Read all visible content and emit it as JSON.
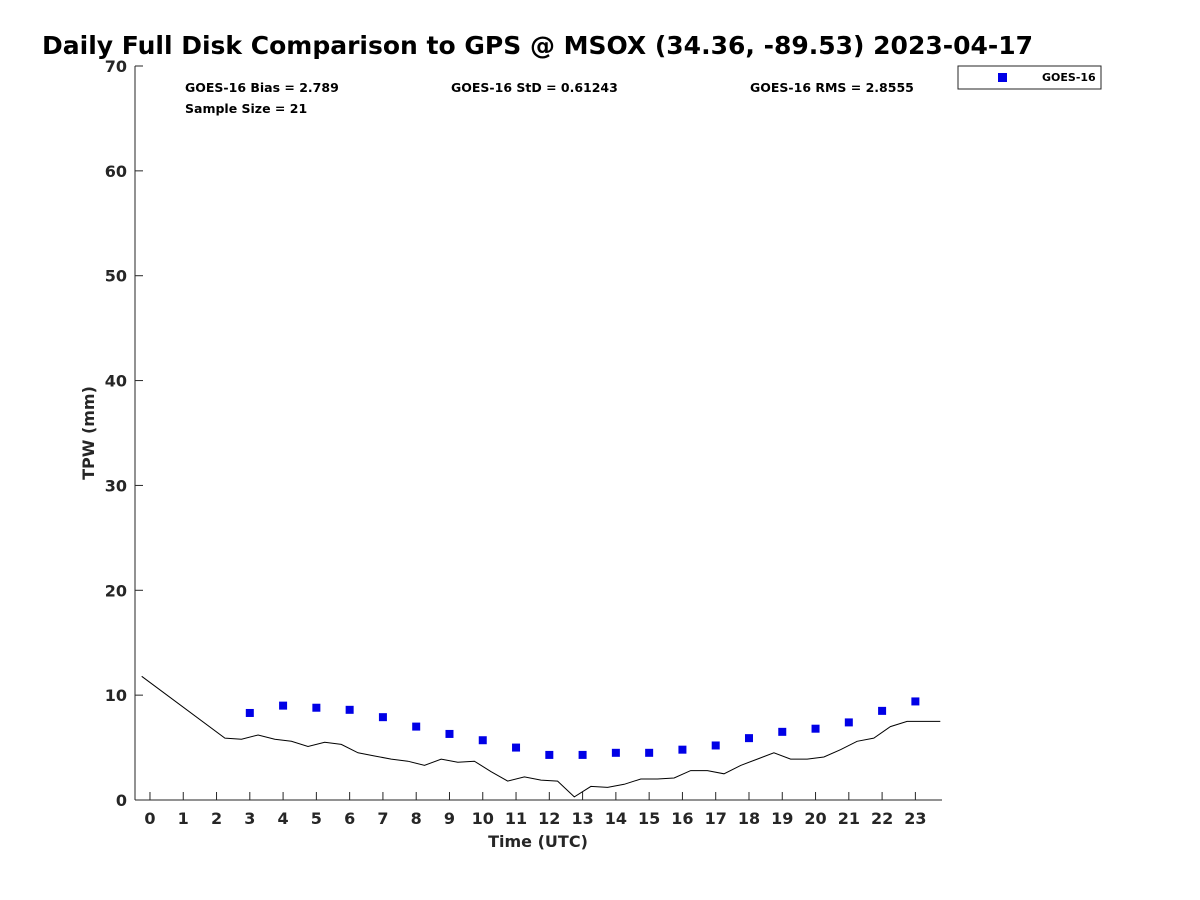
{
  "chart_data": {
    "type": "scatter",
    "title": "Daily Full Disk Comparison to GPS @ MSOX (34.36, -89.53) 2023-04-17",
    "xlabel": "Time (UTC)",
    "ylabel": "TPW (mm)",
    "xlim": [
      -0.45,
      23.8
    ],
    "ylim": [
      0,
      70
    ],
    "xticks": [
      0,
      1,
      2,
      3,
      4,
      5,
      6,
      7,
      8,
      9,
      10,
      11,
      12,
      13,
      14,
      15,
      16,
      17,
      18,
      19,
      20,
      21,
      22,
      23
    ],
    "yticks": [
      0,
      10,
      20,
      30,
      40,
      50,
      60,
      70
    ],
    "legend": {
      "position": "top-right",
      "entries": [
        "GOES-16"
      ]
    },
    "stats": {
      "bias": "GOES-16 Bias = 2.789",
      "std": "GOES-16 StD = 0.61243",
      "rms": "GOES-16 RMS = 2.8555",
      "sample": "Sample Size = 21"
    },
    "series": [
      {
        "name": "GOES-16",
        "kind": "scatter",
        "color": "#0000e6",
        "x": [
          3,
          4,
          5,
          6,
          7,
          8,
          9,
          10,
          11,
          12,
          13,
          14,
          15,
          16,
          17,
          18,
          19,
          20,
          21,
          22,
          23
        ],
        "y": [
          8.3,
          9.0,
          8.8,
          8.6,
          7.9,
          7.0,
          6.3,
          5.7,
          5.0,
          4.3,
          4.3,
          4.5,
          4.5,
          4.8,
          5.2,
          5.9,
          6.5,
          6.8,
          7.4,
          8.5,
          9.4
        ]
      },
      {
        "kind": "line",
        "color": "#000000",
        "x": [
          -0.25,
          2.25,
          2.75,
          3.25,
          3.75,
          4.25,
          4.75,
          5.25,
          5.75,
          6.25,
          6.75,
          7.25,
          7.75,
          8.25,
          8.75,
          9.25,
          9.75,
          10.25,
          10.75,
          11.25,
          11.75,
          12.25,
          12.75,
          13.25,
          13.75,
          14.25,
          14.75,
          15.25,
          15.75,
          16.25,
          16.75,
          17.25,
          17.75,
          18.25,
          18.75,
          19.25,
          19.75,
          20.25,
          20.75,
          21.25,
          21.75,
          22.25,
          22.75,
          23.25,
          23.75
        ],
        "y": [
          11.8,
          5.9,
          5.8,
          6.2,
          5.8,
          5.6,
          5.1,
          5.5,
          5.3,
          4.5,
          4.2,
          3.9,
          3.7,
          3.3,
          3.9,
          3.6,
          3.7,
          2.7,
          1.8,
          2.2,
          1.9,
          1.8,
          0.3,
          1.3,
          1.2,
          1.5,
          2.0,
          2.0,
          2.1,
          2.8,
          2.8,
          2.5,
          3.3,
          3.9,
          4.5,
          3.9,
          3.9,
          4.1,
          4.8,
          5.6,
          5.9,
          7.0,
          7.5,
          7.5,
          7.5
        ]
      }
    ]
  }
}
